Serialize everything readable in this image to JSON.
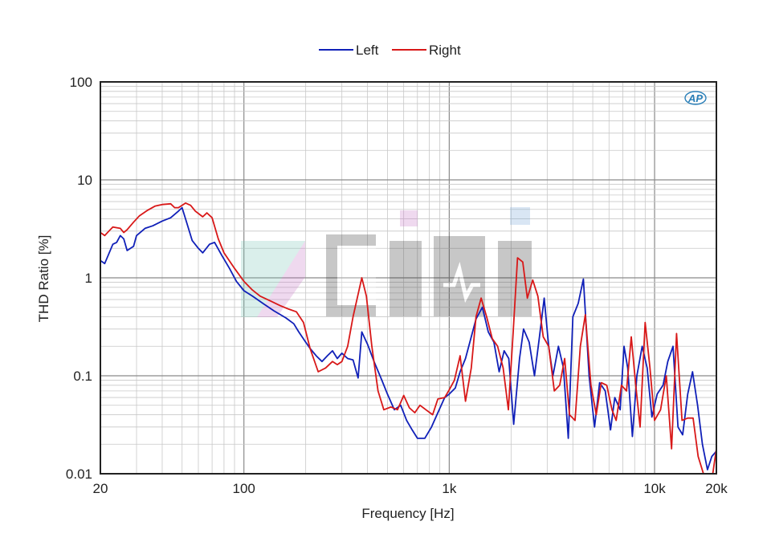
{
  "chart_data": {
    "type": "line",
    "x_scale": "log",
    "y_scale": "log",
    "xlabel": "Frequency [Hz]",
    "ylabel": "THD Ratio [%]",
    "xlim": [
      20,
      20000
    ],
    "ylim": [
      0.01,
      100
    ],
    "x_ticks": [
      {
        "value": 20,
        "label": "20"
      },
      {
        "value": 100,
        "label": "100"
      },
      {
        "value": 1000,
        "label": "1k"
      },
      {
        "value": 10000,
        "label": "10k"
      },
      {
        "value": 20000,
        "label": "20k"
      }
    ],
    "y_ticks": [
      {
        "value": 100,
        "label": "100"
      },
      {
        "value": 10,
        "label": "10"
      },
      {
        "value": 1,
        "label": "1"
      },
      {
        "value": 0.1,
        "label": "0.1"
      },
      {
        "value": 0.01,
        "label": "0.01"
      }
    ],
    "grid": true,
    "legend_position": "top-center",
    "series": [
      {
        "name": "Left",
        "color": "#1020b8",
        "points": [
          [
            20,
            1.5
          ],
          [
            21,
            1.4
          ],
          [
            23,
            2.2
          ],
          [
            24,
            2.3
          ],
          [
            25,
            2.7
          ],
          [
            26,
            2.5
          ],
          [
            27,
            1.9
          ],
          [
            29,
            2.1
          ],
          [
            30,
            2.7
          ],
          [
            33,
            3.2
          ],
          [
            36,
            3.4
          ],
          [
            40,
            3.8
          ],
          [
            44,
            4.1
          ],
          [
            48,
            4.8
          ],
          [
            50,
            5.2
          ],
          [
            53,
            3.5
          ],
          [
            56,
            2.4
          ],
          [
            60,
            2.0
          ],
          [
            63,
            1.8
          ],
          [
            68,
            2.2
          ],
          [
            72,
            2.3
          ],
          [
            78,
            1.7
          ],
          [
            85,
            1.25
          ],
          [
            92,
            0.92
          ],
          [
            100,
            0.74
          ],
          [
            110,
            0.65
          ],
          [
            125,
            0.54
          ],
          [
            140,
            0.46
          ],
          [
            160,
            0.39
          ],
          [
            175,
            0.34
          ],
          [
            185,
            0.28
          ],
          [
            200,
            0.22
          ],
          [
            210,
            0.19
          ],
          [
            225,
            0.16
          ],
          [
            240,
            0.14
          ],
          [
            255,
            0.16
          ],
          [
            270,
            0.18
          ],
          [
            285,
            0.15
          ],
          [
            300,
            0.17
          ],
          [
            320,
            0.15
          ],
          [
            340,
            0.145
          ],
          [
            360,
            0.095
          ],
          [
            375,
            0.28
          ],
          [
            400,
            0.21
          ],
          [
            430,
            0.14
          ],
          [
            470,
            0.09
          ],
          [
            500,
            0.065
          ],
          [
            540,
            0.045
          ],
          [
            580,
            0.05
          ],
          [
            620,
            0.035
          ],
          [
            660,
            0.028
          ],
          [
            700,
            0.023
          ],
          [
            760,
            0.023
          ],
          [
            820,
            0.03
          ],
          [
            880,
            0.042
          ],
          [
            950,
            0.06
          ],
          [
            1000,
            0.065
          ],
          [
            1070,
            0.075
          ],
          [
            1130,
            0.11
          ],
          [
            1200,
            0.15
          ],
          [
            1280,
            0.25
          ],
          [
            1350,
            0.38
          ],
          [
            1450,
            0.5
          ],
          [
            1550,
            0.28
          ],
          [
            1650,
            0.22
          ],
          [
            1750,
            0.11
          ],
          [
            1850,
            0.18
          ],
          [
            1950,
            0.15
          ],
          [
            2060,
            0.032
          ],
          [
            2200,
            0.15
          ],
          [
            2300,
            0.3
          ],
          [
            2450,
            0.22
          ],
          [
            2600,
            0.1
          ],
          [
            2750,
            0.25
          ],
          [
            2900,
            0.62
          ],
          [
            3050,
            0.2
          ],
          [
            3200,
            0.1
          ],
          [
            3400,
            0.2
          ],
          [
            3600,
            0.12
          ],
          [
            3800,
            0.023
          ],
          [
            4000,
            0.4
          ],
          [
            4250,
            0.55
          ],
          [
            4500,
            0.97
          ],
          [
            4800,
            0.1
          ],
          [
            5100,
            0.03
          ],
          [
            5400,
            0.085
          ],
          [
            5750,
            0.07
          ],
          [
            6100,
            0.028
          ],
          [
            6400,
            0.06
          ],
          [
            6800,
            0.045
          ],
          [
            7100,
            0.2
          ],
          [
            7400,
            0.12
          ],
          [
            7800,
            0.024
          ],
          [
            8200,
            0.1
          ],
          [
            8700,
            0.2
          ],
          [
            9200,
            0.12
          ],
          [
            9700,
            0.038
          ],
          [
            10300,
            0.065
          ],
          [
            11000,
            0.08
          ],
          [
            11600,
            0.14
          ],
          [
            12300,
            0.2
          ],
          [
            13000,
            0.03
          ],
          [
            13700,
            0.025
          ],
          [
            14500,
            0.065
          ],
          [
            15300,
            0.11
          ],
          [
            16200,
            0.05
          ],
          [
            17100,
            0.02
          ],
          [
            18100,
            0.011
          ],
          [
            19000,
            0.015
          ],
          [
            20000,
            0.017
          ]
        ]
      },
      {
        "name": "Right",
        "color": "#d81818",
        "points": [
          [
            20,
            2.9
          ],
          [
            21,
            2.7
          ],
          [
            22,
            3.0
          ],
          [
            23,
            3.3
          ],
          [
            25,
            3.2
          ],
          [
            26,
            2.9
          ],
          [
            27,
            3.1
          ],
          [
            29,
            3.7
          ],
          [
            31,
            4.3
          ],
          [
            34,
            4.9
          ],
          [
            37,
            5.4
          ],
          [
            40,
            5.6
          ],
          [
            44,
            5.7
          ],
          [
            46,
            5.2
          ],
          [
            48,
            5.2
          ],
          [
            52,
            5.8
          ],
          [
            55,
            5.5
          ],
          [
            58,
            4.8
          ],
          [
            63,
            4.2
          ],
          [
            66,
            4.6
          ],
          [
            70,
            4.1
          ],
          [
            75,
            2.5
          ],
          [
            80,
            1.8
          ],
          [
            90,
            1.25
          ],
          [
            100,
            0.92
          ],
          [
            110,
            0.75
          ],
          [
            120,
            0.65
          ],
          [
            135,
            0.58
          ],
          [
            150,
            0.52
          ],
          [
            165,
            0.48
          ],
          [
            180,
            0.45
          ],
          [
            195,
            0.35
          ],
          [
            210,
            0.19
          ],
          [
            230,
            0.11
          ],
          [
            250,
            0.12
          ],
          [
            270,
            0.14
          ],
          [
            285,
            0.13
          ],
          [
            300,
            0.14
          ],
          [
            320,
            0.2
          ],
          [
            340,
            0.4
          ],
          [
            360,
            0.68
          ],
          [
            375,
            1.0
          ],
          [
            395,
            0.65
          ],
          [
            420,
            0.2
          ],
          [
            450,
            0.07
          ],
          [
            480,
            0.045
          ],
          [
            520,
            0.048
          ],
          [
            560,
            0.045
          ],
          [
            600,
            0.063
          ],
          [
            640,
            0.047
          ],
          [
            680,
            0.042
          ],
          [
            720,
            0.05
          ],
          [
            770,
            0.045
          ],
          [
            830,
            0.04
          ],
          [
            880,
            0.058
          ],
          [
            950,
            0.06
          ],
          [
            1000,
            0.072
          ],
          [
            1060,
            0.09
          ],
          [
            1130,
            0.16
          ],
          [
            1200,
            0.055
          ],
          [
            1280,
            0.12
          ],
          [
            1350,
            0.4
          ],
          [
            1430,
            0.62
          ],
          [
            1520,
            0.4
          ],
          [
            1620,
            0.24
          ],
          [
            1720,
            0.2
          ],
          [
            1830,
            0.12
          ],
          [
            1940,
            0.045
          ],
          [
            2050,
            0.29
          ],
          [
            2150,
            1.6
          ],
          [
            2280,
            1.45
          ],
          [
            2400,
            0.62
          ],
          [
            2550,
            0.95
          ],
          [
            2700,
            0.65
          ],
          [
            2870,
            0.25
          ],
          [
            3050,
            0.2
          ],
          [
            3250,
            0.07
          ],
          [
            3450,
            0.08
          ],
          [
            3650,
            0.15
          ],
          [
            3850,
            0.04
          ],
          [
            4100,
            0.035
          ],
          [
            4350,
            0.2
          ],
          [
            4600,
            0.42
          ],
          [
            4900,
            0.08
          ],
          [
            5200,
            0.04
          ],
          [
            5500,
            0.085
          ],
          [
            5850,
            0.08
          ],
          [
            6200,
            0.045
          ],
          [
            6500,
            0.035
          ],
          [
            6900,
            0.08
          ],
          [
            7300,
            0.07
          ],
          [
            7700,
            0.25
          ],
          [
            8100,
            0.08
          ],
          [
            8500,
            0.03
          ],
          [
            9000,
            0.35
          ],
          [
            9500,
            0.12
          ],
          [
            10000,
            0.035
          ],
          [
            10700,
            0.045
          ],
          [
            11400,
            0.1
          ],
          [
            12100,
            0.018
          ],
          [
            12800,
            0.27
          ],
          [
            13600,
            0.035
          ],
          [
            14500,
            0.037
          ],
          [
            15400,
            0.037
          ],
          [
            16300,
            0.015
          ],
          [
            17300,
            0.009
          ],
          [
            18300,
            0.009
          ],
          [
            19200,
            0.009
          ],
          [
            20000,
            0.018
          ]
        ]
      }
    ]
  },
  "logo": {
    "text": "AP"
  }
}
